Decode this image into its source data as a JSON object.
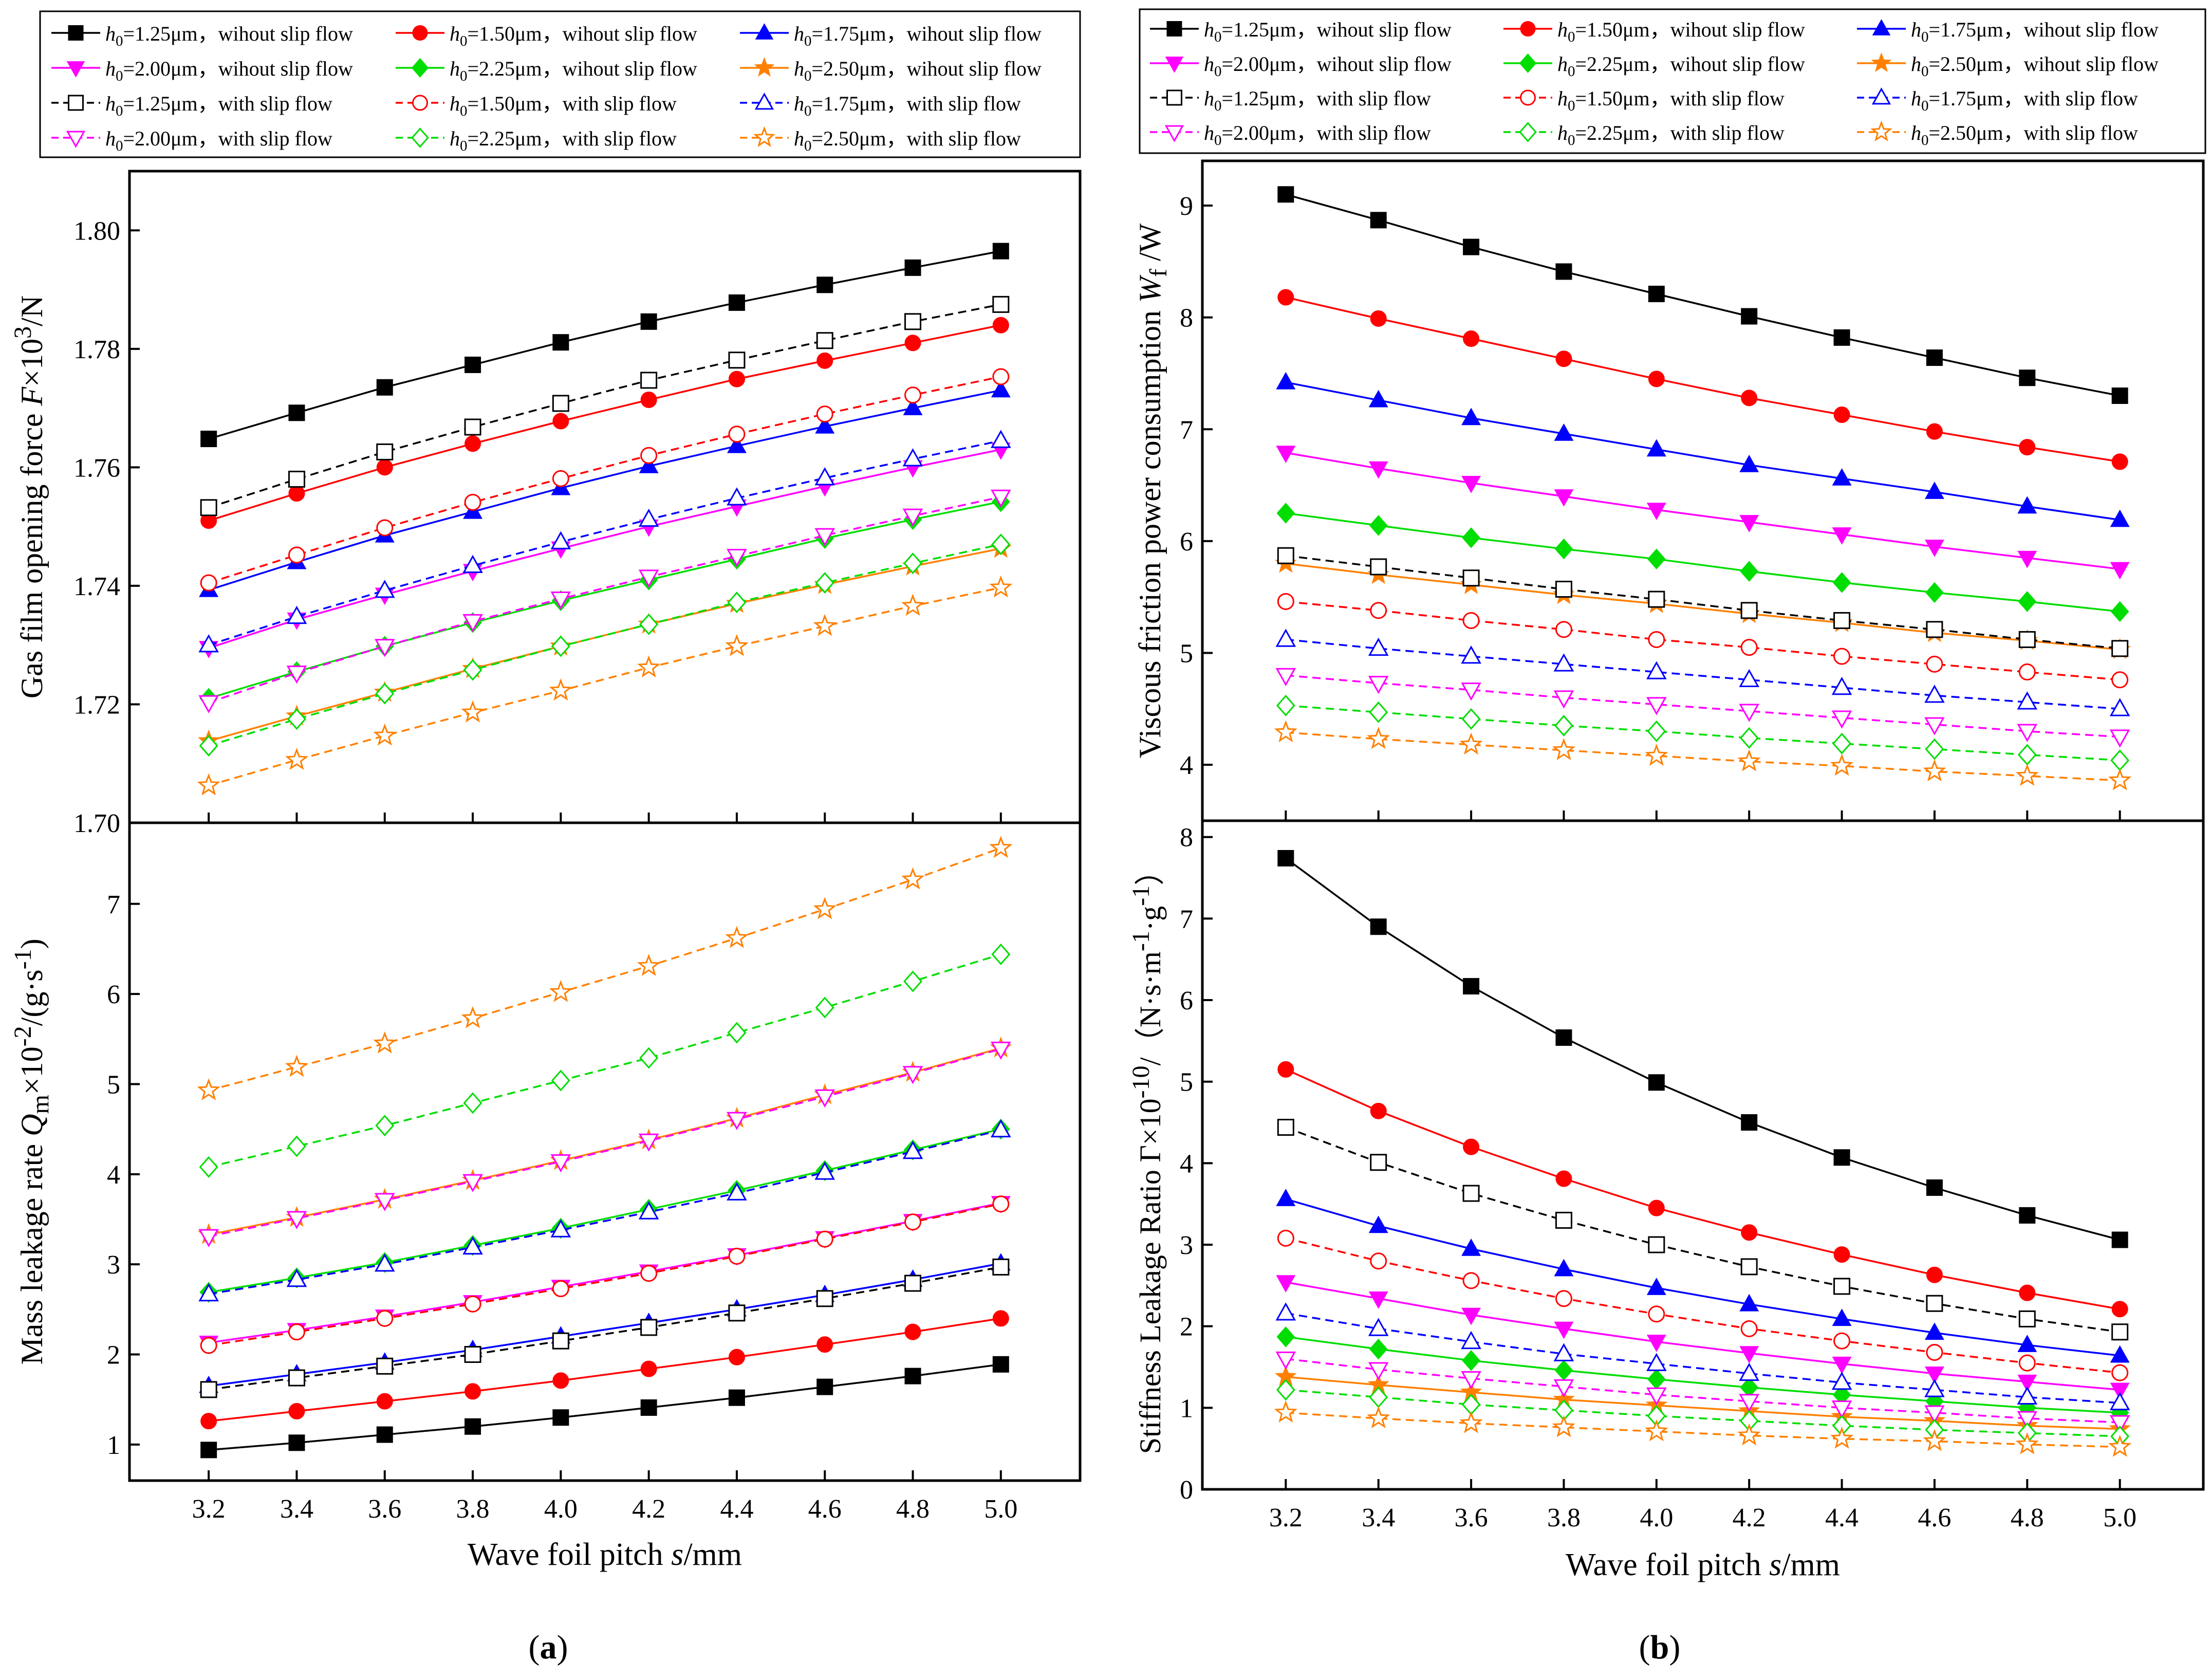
{
  "colors": {
    "h125": "#000000",
    "h150": "#ff0000",
    "h175": "#0000ff",
    "h200": "#ff00ff",
    "h225": "#00dd00",
    "h250": "#ff8000"
  },
  "legend": [
    {
      "key": "h125",
      "value": "=1.25μm",
      "cond": "wihout slip flow",
      "marker": "square",
      "fill": "solid",
      "line": "solid"
    },
    {
      "key": "h150",
      "value": "=1.50μm",
      "cond": "wihout slip flow",
      "marker": "circle",
      "fill": "solid",
      "line": "solid"
    },
    {
      "key": "h175",
      "value": "=1.75μm",
      "cond": "wihout slip flow",
      "marker": "triangle-up",
      "fill": "solid",
      "line": "solid"
    },
    {
      "key": "h200",
      "value": "=2.00μm",
      "cond": "wihout slip flow",
      "marker": "triangle-down",
      "fill": "solid",
      "line": "solid"
    },
    {
      "key": "h225",
      "value": "=2.25μm",
      "cond": "wihout slip flow",
      "marker": "diamond",
      "fill": "solid",
      "line": "solid"
    },
    {
      "key": "h250",
      "value": "=2.50μm",
      "cond": "wihout slip flow",
      "marker": "star",
      "fill": "solid",
      "line": "solid"
    },
    {
      "key": "h125",
      "value": "=1.25μm",
      "cond": "with slip flow",
      "marker": "square",
      "fill": "open",
      "line": "dashed"
    },
    {
      "key": "h150",
      "value": "=1.50μm",
      "cond": "with slip flow",
      "marker": "circle",
      "fill": "open",
      "line": "dashed"
    },
    {
      "key": "h175",
      "value": "=1.75μm",
      "cond": "with slip flow",
      "marker": "triangle-up",
      "fill": "open",
      "line": "dashed"
    },
    {
      "key": "h200",
      "value": "=2.00μm",
      "cond": "with slip flow",
      "marker": "triangle-down",
      "fill": "open",
      "line": "dashed"
    },
    {
      "key": "h225",
      "value": "=2.25μm",
      "cond": "with slip flow",
      "marker": "diamond",
      "fill": "open",
      "line": "dashed"
    },
    {
      "key": "h250",
      "value": "=2.50μm",
      "cond": "with slip flow",
      "marker": "star",
      "fill": "open",
      "line": "dashed"
    }
  ],
  "legend_prefix": "h",
  "legend_prefix_sub": "0",
  "labels": {
    "xlabel_pre": "Wave foil pitch ",
    "xlabel_var": "s",
    "xlabel_unit": "/mm",
    "force_pre": "Gas film opening force ",
    "force_var": "F",
    "force_mid": "×10",
    "force_exp": "3",
    "force_unit": "/N",
    "leak_pre": "Mass leakage rate ",
    "leak_var": "Q",
    "leak_sub": "m",
    "leak_mid": "×10",
    "leak_exp": "-2",
    "leak_unit1": "/(g·s",
    "leak_unit_exp": "-1",
    "leak_unit2": ")",
    "power_pre": "Viscous friction power consumption ",
    "power_var": "W",
    "power_sub": "f",
    "power_unit": " /W",
    "ratio_pre": "Stiffness Leakage Ratio Γ×10",
    "ratio_exp": "-10",
    "ratio_mid": "/（N·s·m",
    "ratio_exp2": "-1",
    "ratio_mid2": "·g",
    "ratio_exp3": "-1",
    "ratio_end": "）",
    "caption_a": "a",
    "caption_b": "b",
    "paren_open": "(",
    "paren_close": ")"
  },
  "chart_data": [
    {
      "id": "force",
      "type": "line",
      "panel": "a-top",
      "xlabel": "Wave foil pitch s/mm",
      "ylabel": "Gas film opening force F×10^3/N",
      "x": [
        3.2,
        3.4,
        3.6,
        3.8,
        4.0,
        4.2,
        4.4,
        4.6,
        4.8,
        5.0
      ],
      "xlim": [
        3.02,
        5.18
      ],
      "ylim": [
        1.7,
        1.81
      ],
      "yticks": [
        1.7,
        1.72,
        1.74,
        1.76,
        1.78,
        1.8
      ],
      "series": [
        {
          "legend": 0,
          "values": [
            1.7648,
            1.7692,
            1.7735,
            1.7773,
            1.7811,
            1.7846,
            1.7878,
            1.7908,
            1.7937,
            1.7965
          ]
        },
        {
          "legend": 1,
          "values": [
            1.751,
            1.7556,
            1.76,
            1.764,
            1.7678,
            1.7714,
            1.7749,
            1.778,
            1.781,
            1.784
          ]
        },
        {
          "legend": 2,
          "values": [
            1.7393,
            1.744,
            1.7485,
            1.7525,
            1.7565,
            1.7602,
            1.7636,
            1.7669,
            1.77,
            1.773
          ]
        },
        {
          "legend": 3,
          "values": [
            1.7295,
            1.7343,
            1.7385,
            1.7425,
            1.7463,
            1.75,
            1.7534,
            1.7568,
            1.76,
            1.763
          ]
        },
        {
          "legend": 4,
          "values": [
            1.721,
            1.7255,
            1.7298,
            1.7338,
            1.7375,
            1.741,
            1.7445,
            1.748,
            1.7512,
            1.7542
          ]
        },
        {
          "legend": 5,
          "values": [
            1.7138,
            1.718,
            1.722,
            1.726,
            1.7298,
            1.7335,
            1.737,
            1.7402,
            1.7433,
            1.7463
          ]
        },
        {
          "legend": 6,
          "values": [
            1.7532,
            1.758,
            1.7626,
            1.7668,
            1.7708,
            1.7747,
            1.7781,
            1.7814,
            1.7846,
            1.7875
          ]
        },
        {
          "legend": 7,
          "values": [
            1.7405,
            1.7452,
            1.7498,
            1.7541,
            1.7581,
            1.762,
            1.7656,
            1.769,
            1.7722,
            1.7753
          ]
        },
        {
          "legend": 8,
          "values": [
            1.73,
            1.7348,
            1.7392,
            1.7434,
            1.7474,
            1.7512,
            1.7548,
            1.7582,
            1.7614,
            1.7645
          ]
        },
        {
          "legend": 9,
          "values": [
            1.7203,
            1.7253,
            1.7298,
            1.734,
            1.7378,
            1.7415,
            1.745,
            1.7485,
            1.7518,
            1.755
          ]
        },
        {
          "legend": 10,
          "values": [
            1.713,
            1.7175,
            1.7218,
            1.7258,
            1.7298,
            1.7335,
            1.7372,
            1.7405,
            1.7438,
            1.747
          ]
        },
        {
          "legend": 11,
          "values": [
            1.7063,
            1.7106,
            1.7147,
            1.7186,
            1.7223,
            1.7262,
            1.7298,
            1.7332,
            1.7366,
            1.7397
          ]
        }
      ]
    },
    {
      "id": "leak",
      "type": "line",
      "panel": "a-bottom",
      "xlabel": "Wave foil pitch s/mm",
      "ylabel": "Mass leakage rate Qm×10^-2/(g·s^-1)",
      "x": [
        3.2,
        3.4,
        3.6,
        3.8,
        4.0,
        4.2,
        4.4,
        4.6,
        4.8,
        5.0
      ],
      "xlim": [
        3.02,
        5.18
      ],
      "ylim": [
        0.6,
        7.9
      ],
      "yticks": [
        1,
        2,
        3,
        4,
        5,
        6,
        7
      ],
      "series": [
        {
          "legend": 0,
          "values": [
            0.94,
            1.02,
            1.11,
            1.2,
            1.3,
            1.41,
            1.52,
            1.64,
            1.76,
            1.89
          ]
        },
        {
          "legend": 1,
          "values": [
            1.26,
            1.37,
            1.48,
            1.59,
            1.71,
            1.84,
            1.97,
            2.11,
            2.25,
            2.4
          ]
        },
        {
          "legend": 2,
          "values": [
            1.65,
            1.78,
            1.91,
            2.05,
            2.2,
            2.35,
            2.5,
            2.66,
            2.83,
            3.01
          ]
        },
        {
          "legend": 3,
          "values": [
            2.13,
            2.27,
            2.42,
            2.58,
            2.75,
            2.92,
            3.1,
            3.29,
            3.48,
            3.68
          ]
        },
        {
          "legend": 4,
          "values": [
            2.69,
            2.85,
            3.02,
            3.21,
            3.4,
            3.61,
            3.82,
            4.04,
            4.27,
            4.5
          ]
        },
        {
          "legend": 5,
          "values": [
            3.33,
            3.52,
            3.72,
            3.93,
            4.15,
            4.38,
            4.62,
            4.88,
            5.13,
            5.4
          ]
        },
        {
          "legend": 6,
          "values": [
            1.61,
            1.74,
            1.87,
            2.0,
            2.15,
            2.3,
            2.46,
            2.62,
            2.79,
            2.97
          ]
        },
        {
          "legend": 7,
          "values": [
            2.1,
            2.25,
            2.4,
            2.56,
            2.73,
            2.9,
            3.09,
            3.28,
            3.47,
            3.67
          ]
        },
        {
          "legend": 8,
          "values": [
            2.67,
            2.83,
            3.0,
            3.19,
            3.38,
            3.58,
            3.79,
            4.02,
            4.25,
            4.49
          ]
        },
        {
          "legend": 9,
          "values": [
            3.31,
            3.51,
            3.71,
            3.92,
            4.14,
            4.37,
            4.61,
            4.86,
            5.12,
            5.39
          ]
        },
        {
          "legend": 10,
          "values": [
            4.08,
            4.31,
            4.54,
            4.79,
            5.04,
            5.29,
            5.57,
            5.85,
            6.14,
            6.44
          ]
        },
        {
          "legend": 11,
          "values": [
            4.93,
            5.19,
            5.45,
            5.73,
            6.02,
            6.31,
            6.62,
            6.94,
            7.27,
            7.62
          ]
        }
      ]
    },
    {
      "id": "power",
      "type": "line",
      "panel": "b-top",
      "xlabel": "Wave foil pitch s/mm",
      "ylabel": "Viscous friction power consumption Wf /W",
      "x": [
        3.2,
        3.4,
        3.6,
        3.8,
        4.0,
        4.2,
        4.4,
        4.6,
        4.8,
        5.0
      ],
      "xlim": [
        3.02,
        5.18
      ],
      "ylim": [
        3.5,
        9.4
      ],
      "yticks": [
        4,
        5,
        6,
        7,
        8,
        9
      ],
      "series": [
        {
          "legend": 0,
          "values": [
            9.1,
            8.87,
            8.63,
            8.41,
            8.21,
            8.01,
            7.82,
            7.64,
            7.46,
            7.3
          ]
        },
        {
          "legend": 1,
          "values": [
            8.18,
            7.99,
            7.81,
            7.63,
            7.45,
            7.28,
            7.13,
            6.98,
            6.84,
            6.71
          ]
        },
        {
          "legend": 2,
          "values": [
            7.42,
            7.26,
            7.1,
            6.96,
            6.82,
            6.68,
            6.56,
            6.44,
            6.31,
            6.19
          ]
        },
        {
          "legend": 3,
          "values": [
            6.79,
            6.65,
            6.52,
            6.4,
            6.28,
            6.17,
            6.06,
            5.95,
            5.85,
            5.75
          ]
        },
        {
          "legend": 4,
          "values": [
            6.25,
            6.14,
            6.03,
            5.93,
            5.84,
            5.73,
            5.63,
            5.54,
            5.46,
            5.37
          ]
        },
        {
          "legend": 5,
          "values": [
            5.8,
            5.7,
            5.61,
            5.52,
            5.44,
            5.35,
            5.27,
            5.18,
            5.11,
            5.03
          ]
        },
        {
          "legend": 6,
          "values": [
            5.87,
            5.77,
            5.67,
            5.57,
            5.48,
            5.38,
            5.29,
            5.21,
            5.12,
            5.04
          ]
        },
        {
          "legend": 7,
          "values": [
            5.46,
            5.38,
            5.29,
            5.21,
            5.12,
            5.05,
            4.97,
            4.9,
            4.83,
            4.76
          ]
        },
        {
          "legend": 8,
          "values": [
            5.12,
            5.04,
            4.97,
            4.9,
            4.83,
            4.76,
            4.69,
            4.62,
            4.56,
            4.5
          ]
        },
        {
          "legend": 9,
          "values": [
            4.8,
            4.73,
            4.67,
            4.6,
            4.54,
            4.48,
            4.42,
            4.36,
            4.3,
            4.25
          ]
        },
        {
          "legend": 10,
          "values": [
            4.53,
            4.47,
            4.41,
            4.35,
            4.3,
            4.24,
            4.19,
            4.14,
            4.09,
            4.04
          ]
        },
        {
          "legend": 11,
          "values": [
            4.29,
            4.23,
            4.18,
            4.13,
            4.08,
            4.03,
            3.99,
            3.94,
            3.9,
            3.86
          ]
        }
      ]
    },
    {
      "id": "ratio",
      "type": "line",
      "panel": "b-bottom",
      "xlabel": "Wave foil pitch s/mm",
      "ylabel": "Stiffness Leakage Ratio Γ×10^-10/(N·s·m^-1·g^-1)",
      "x": [
        3.2,
        3.4,
        3.6,
        3.8,
        4.0,
        4.2,
        4.4,
        4.6,
        4.8,
        5.0
      ],
      "xlim": [
        3.02,
        5.18
      ],
      "ylim": [
        0,
        8.2
      ],
      "yticks": [
        0,
        1,
        2,
        3,
        4,
        5,
        6,
        7,
        8
      ],
      "series": [
        {
          "legend": 0,
          "values": [
            7.74,
            6.9,
            6.17,
            5.54,
            4.99,
            4.5,
            4.07,
            3.7,
            3.36,
            3.06
          ]
        },
        {
          "legend": 1,
          "values": [
            5.15,
            4.64,
            4.2,
            3.81,
            3.45,
            3.15,
            2.88,
            2.63,
            2.41,
            2.21
          ]
        },
        {
          "legend": 2,
          "values": [
            3.56,
            3.23,
            2.95,
            2.7,
            2.47,
            2.27,
            2.09,
            1.92,
            1.77,
            1.64
          ]
        },
        {
          "legend": 3,
          "values": [
            2.54,
            2.34,
            2.14,
            1.97,
            1.81,
            1.67,
            1.54,
            1.42,
            1.32,
            1.22
          ]
        },
        {
          "legend": 4,
          "values": [
            1.87,
            1.72,
            1.58,
            1.46,
            1.35,
            1.25,
            1.16,
            1.08,
            1.0,
            0.94
          ]
        },
        {
          "legend": 5,
          "values": [
            1.38,
            1.28,
            1.19,
            1.1,
            1.03,
            0.96,
            0.89,
            0.84,
            0.78,
            0.74
          ]
        },
        {
          "legend": 6,
          "values": [
            4.44,
            4.01,
            3.63,
            3.3,
            3.0,
            2.73,
            2.49,
            2.28,
            2.09,
            1.93
          ]
        },
        {
          "legend": 7,
          "values": [
            3.08,
            2.8,
            2.56,
            2.34,
            2.15,
            1.97,
            1.82,
            1.68,
            1.55,
            1.43
          ]
        },
        {
          "legend": 8,
          "values": [
            2.16,
            1.97,
            1.81,
            1.66,
            1.54,
            1.42,
            1.31,
            1.22,
            1.13,
            1.06
          ]
        },
        {
          "legend": 9,
          "values": [
            1.6,
            1.47,
            1.36,
            1.26,
            1.16,
            1.08,
            1.0,
            0.94,
            0.87,
            0.82
          ]
        },
        {
          "legend": 10,
          "values": [
            1.22,
            1.13,
            1.04,
            0.97,
            0.9,
            0.84,
            0.78,
            0.73,
            0.69,
            0.65
          ]
        },
        {
          "legend": 11,
          "values": [
            0.94,
            0.87,
            0.81,
            0.76,
            0.71,
            0.66,
            0.62,
            0.59,
            0.55,
            0.52
          ]
        }
      ]
    }
  ]
}
